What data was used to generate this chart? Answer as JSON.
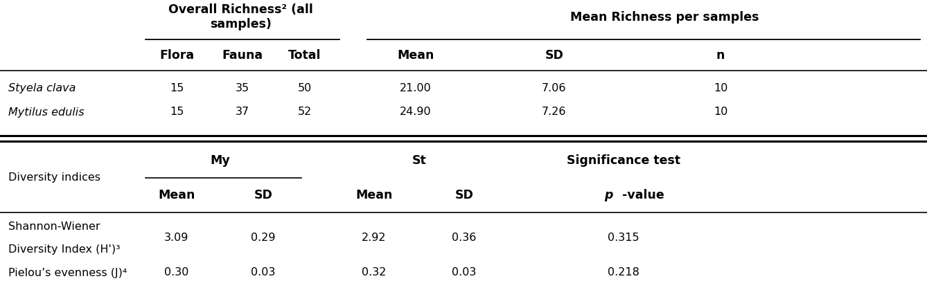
{
  "top_header_left_line1": "Overall Richness² (all",
  "top_header_left_line2": "samples)",
  "top_header_right": "Mean Richness per samples",
  "sub_header_left": [
    "Flora",
    "Fauna",
    "Total"
  ],
  "sub_header_right": [
    "Mean",
    "SD",
    "n"
  ],
  "rows_top": [
    {
      "label": "Styela clava",
      "values": [
        "15",
        "35",
        "50",
        "21.00",
        "7.06",
        "10"
      ]
    },
    {
      "label": "Mytilus edulis",
      "values": [
        "15",
        "37",
        "52",
        "24.90",
        "7.26",
        "10"
      ]
    }
  ],
  "diversity_header_label": "Diversity indices",
  "diversity_group_My": "My",
  "diversity_group_St": "St",
  "diversity_group_Sig": "Significance test",
  "rows_bottom": [
    {
      "label_line1": "Shannon-Wiener",
      "label_line2": "Diversity Index (H')³",
      "values": [
        "3.09",
        "0.29",
        "2.92",
        "0.36",
        "0.315"
      ]
    },
    {
      "label_line1": "Pielou’s evenness (J)⁴",
      "label_line2": null,
      "values": [
        "0.30",
        "0.03",
        "0.32",
        "0.03",
        "0.218"
      ]
    }
  ],
  "figsize": [
    13.38,
    4.32
  ],
  "dpi": 100,
  "fs": 11.5,
  "fs_bold": 12.5
}
